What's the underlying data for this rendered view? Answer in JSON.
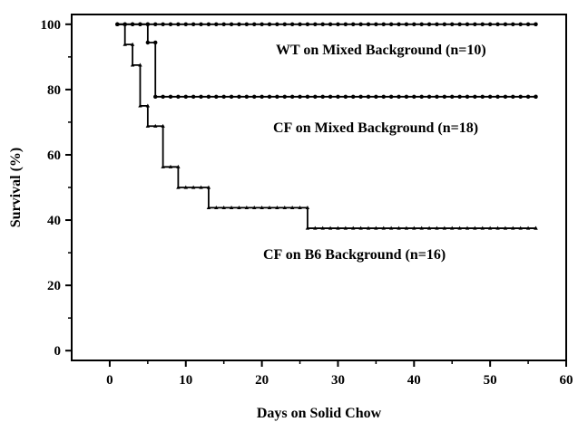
{
  "chart_data": {
    "type": "line",
    "step": true,
    "xlabel": "Days on Solid Chow",
    "ylabel": "Survival (%)",
    "xlim": [
      -5,
      60
    ],
    "ylim": [
      -3,
      103
    ],
    "x_ticks": [
      0,
      10,
      20,
      30,
      40,
      50,
      60
    ],
    "y_ticks": [
      0,
      20,
      40,
      60,
      80,
      100
    ],
    "grid": false,
    "legend": "none",
    "series": [
      {
        "name": "WT on Mixed Background (n=10)",
        "color": "#000000",
        "x": [
          1,
          56
        ],
        "y": [
          100,
          100
        ]
      },
      {
        "name": "CF on Mixed Background (n=18)",
        "color": "#000000",
        "x": [
          1,
          5,
          6,
          56
        ],
        "y": [
          100,
          94.4,
          77.8,
          77.8
        ]
      },
      {
        "name": "CF on B6 Background (n=16)",
        "color": "#000000",
        "x": [
          1,
          2,
          3,
          4,
          5,
          7,
          9,
          13,
          26,
          56
        ],
        "y": [
          100,
          93.8,
          87.5,
          75,
          68.8,
          56.3,
          50,
          43.8,
          37.5,
          37.5
        ]
      }
    ]
  }
}
